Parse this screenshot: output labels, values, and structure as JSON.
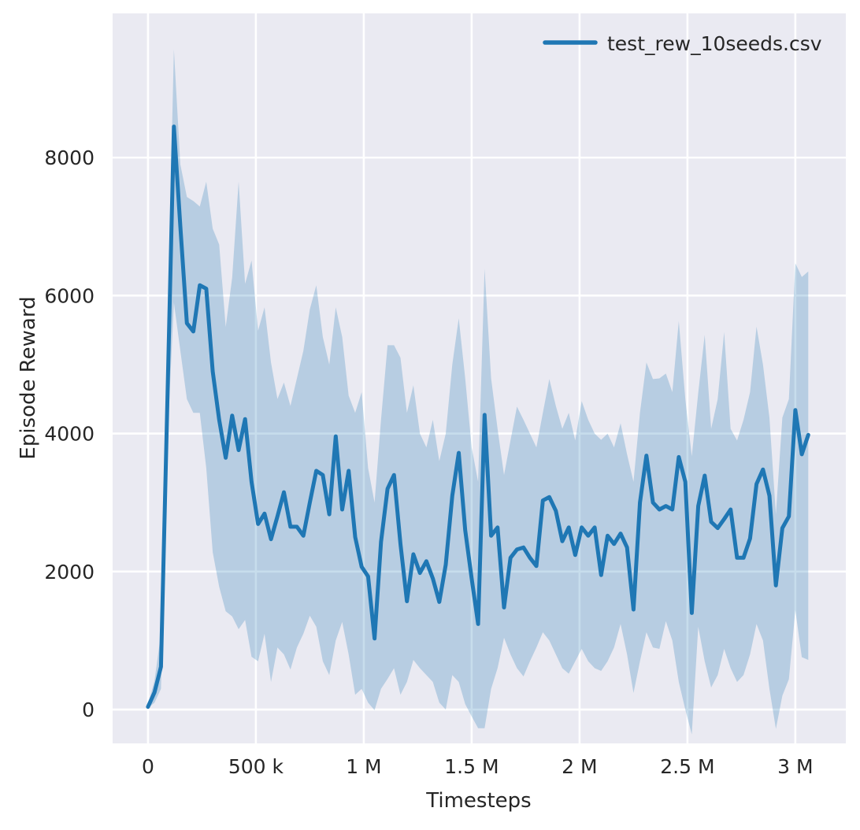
{
  "figure": {
    "background": "#ffffff",
    "plot_background": "#eaeaf2",
    "grid_color": "#ffffff",
    "text_color": "#262626"
  },
  "chart_data": {
    "type": "line",
    "title": "",
    "xlabel": "Timesteps",
    "ylabel": "Episode Reward",
    "grid": true,
    "legend": {
      "position": "upper right",
      "entries": [
        {
          "label": "test_rew_10seeds.csv",
          "color": "#1f77b4"
        }
      ]
    },
    "xlim": [
      -164000,
      3234000
    ],
    "ylim": [
      -490,
      10090
    ],
    "x_ticks": [
      {
        "value": 0,
        "label": "0"
      },
      {
        "value": 500000,
        "label": "500 k"
      },
      {
        "value": 1000000,
        "label": "1 M"
      },
      {
        "value": 1500000,
        "label": "1.5 M"
      },
      {
        "value": 2000000,
        "label": "2 M"
      },
      {
        "value": 2500000,
        "label": "2.5 M"
      },
      {
        "value": 3000000,
        "label": "3 M"
      }
    ],
    "y_ticks": [
      {
        "value": 0,
        "label": "0"
      },
      {
        "value": 2000,
        "label": "2000"
      },
      {
        "value": 4000,
        "label": "4000"
      },
      {
        "value": 6000,
        "label": "6000"
      },
      {
        "value": 8000,
        "label": "8000"
      }
    ],
    "series": [
      {
        "name": "test_rew_10seeds.csv",
        "color": "#1f77b4",
        "line_width": 5,
        "band_opacity": 0.25,
        "x_step": 30000,
        "x": [
          0,
          30000,
          60000,
          90000,
          120000,
          150000,
          180000,
          210000,
          240000,
          270000,
          300000,
          330000,
          360000,
          390000,
          420000,
          450000,
          480000,
          510000,
          540000,
          570000,
          600000,
          630000,
          660000,
          690000,
          720000,
          750000,
          780000,
          810000,
          840000,
          870000,
          900000,
          930000,
          960000,
          990000,
          1020000,
          1050000,
          1080000,
          1110000,
          1140000,
          1170000,
          1200000,
          1230000,
          1260000,
          1290000,
          1320000,
          1350000,
          1380000,
          1410000,
          1440000,
          1470000,
          1500000,
          1530000,
          1560000,
          1590000,
          1620000,
          1650000,
          1680000,
          1710000,
          1740000,
          1770000,
          1800000,
          1830000,
          1860000,
          1890000,
          1920000,
          1950000,
          1980000,
          2010000,
          2040000,
          2070000,
          2100000,
          2130000,
          2160000,
          2190000,
          2220000,
          2250000,
          2280000,
          2310000,
          2340000,
          2370000,
          2400000,
          2430000,
          2460000,
          2490000,
          2520000,
          2550000,
          2580000,
          2610000,
          2640000,
          2670000,
          2700000,
          2730000,
          2760000,
          2790000,
          2820000,
          2850000,
          2880000,
          2910000,
          2940000,
          2970000,
          3000000,
          3030000,
          3060000
        ],
        "mean": [
          40,
          250,
          620,
          4500,
          8450,
          7000,
          5600,
          5480,
          6150,
          6100,
          4900,
          4200,
          3650,
          4260,
          3760,
          4210,
          3300,
          2690,
          2840,
          2470,
          2800,
          3150,
          2650,
          2650,
          2520,
          3000,
          3460,
          3400,
          2830,
          3960,
          2900,
          3460,
          2500,
          2070,
          1930,
          1030,
          2430,
          3200,
          3400,
          2400,
          1570,
          2250,
          1980,
          2150,
          1900,
          1560,
          2100,
          3100,
          3720,
          2600,
          1900,
          1240,
          4270,
          2520,
          2640,
          1480,
          2200,
          2320,
          2350,
          2200,
          2080,
          3030,
          3080,
          2880,
          2440,
          2640,
          2240,
          2640,
          2520,
          2640,
          1950,
          2520,
          2400,
          2550,
          2350,
          1450,
          3000,
          3680,
          3000,
          2900,
          2950,
          2900,
          3660,
          3300,
          1400,
          2950,
          3390,
          2720,
          2630,
          2760,
          2900,
          2200,
          2200,
          2480,
          3270,
          3480,
          3100,
          1800,
          2630,
          2800,
          4340,
          3700,
          3980
        ],
        "band_lower": [
          20,
          100,
          300,
          3900,
          5900,
          5200,
          4500,
          4300,
          4300,
          3500,
          2280,
          1780,
          1425,
          1350,
          1165,
          1300,
          765,
          700,
          1100,
          400,
          900,
          800,
          580,
          900,
          1100,
          1360,
          1200,
          700,
          500,
          1000,
          1270,
          800,
          215,
          300,
          100,
          -10,
          300,
          445,
          600,
          215,
          400,
          720,
          600,
          500,
          400,
          100,
          0,
          500,
          400,
          80,
          -100,
          -270,
          -270,
          300,
          600,
          1040,
          800,
          600,
          480,
          700,
          900,
          1120,
          1000,
          800,
          600,
          520,
          700,
          880,
          700,
          600,
          560,
          700,
          900,
          1240,
          800,
          240,
          700,
          1120,
          900,
          880,
          1280,
          1000,
          400,
          0,
          -360,
          1200,
          700,
          320,
          500,
          880,
          600,
          400,
          500,
          800,
          1240,
          1000,
          300,
          -280,
          200,
          440,
          1440,
          760,
          720
        ],
        "band_upper": [
          70,
          420,
          1100,
          5500,
          9570,
          7900,
          7430,
          7370,
          7290,
          7650,
          6970,
          6740,
          5545,
          6260,
          7650,
          6170,
          6510,
          5490,
          5830,
          5030,
          4500,
          4740,
          4400,
          4800,
          5200,
          5800,
          6150,
          5400,
          5000,
          5830,
          5400,
          4550,
          4300,
          4600,
          3500,
          3000,
          4200,
          5280,
          5280,
          5100,
          4300,
          4700,
          4000,
          3800,
          4200,
          3600,
          4000,
          5000,
          5670,
          4800,
          3800,
          3300,
          6390,
          4800,
          4070,
          3400,
          3900,
          4390,
          4200,
          4000,
          3800,
          4300,
          4790,
          4400,
          4070,
          4300,
          3900,
          4470,
          4200,
          4000,
          3910,
          4000,
          3800,
          4150,
          3700,
          3300,
          4300,
          5030,
          4790,
          4800,
          4870,
          4600,
          5630,
          4500,
          3670,
          4590,
          5430,
          4070,
          4500,
          5470,
          4070,
          3900,
          4200,
          4600,
          5550,
          5000,
          4230,
          2830,
          4230,
          4500,
          6470,
          6270,
          6350
        ]
      }
    ]
  }
}
